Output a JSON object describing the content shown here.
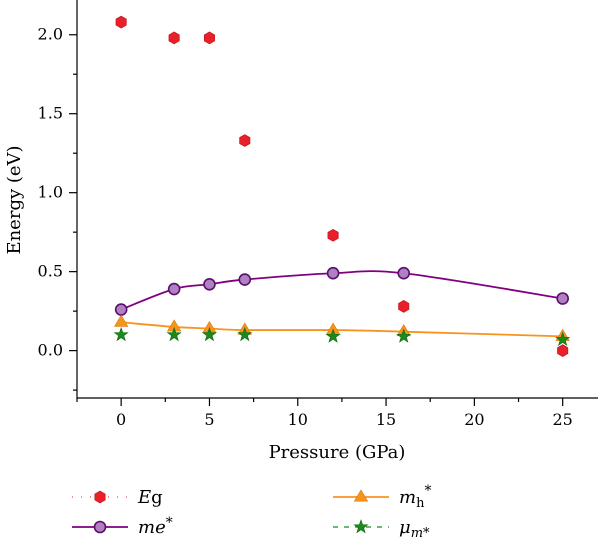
{
  "chart_data": {
    "type": "scatter",
    "xlabel": "Pressure (GPa)",
    "ylabel": "Energy (eV)",
    "xlim": [
      -2.5,
      27
    ],
    "ylim": [
      -0.3,
      2.22
    ],
    "xticks": [
      0,
      5,
      10,
      15,
      20,
      25
    ],
    "yticks": [
      0.0,
      0.5,
      1.0,
      1.5,
      2.0
    ],
    "xtick_labels": [
      "0",
      "5",
      "10",
      "15",
      "20",
      "25"
    ],
    "ytick_labels": [
      "0.0",
      "0.5",
      "1.0",
      "1.5",
      "2.0"
    ],
    "grid": false,
    "legend_position": "bottom",
    "series": [
      {
        "name": "Eg",
        "legend_label_main": "E",
        "legend_label_rest": "g",
        "marker": "hexagon",
        "color": "#e8202a",
        "line": false,
        "x": [
          0,
          3,
          5,
          7,
          12,
          16,
          25
        ],
        "y": [
          2.08,
          1.98,
          1.98,
          1.33,
          0.73,
          0.28,
          0.0
        ]
      },
      {
        "name": "me*",
        "legend_label_main": "me",
        "legend_label_rest": "*",
        "marker": "circle",
        "color": "#8a1f8f",
        "line_color": "#800080",
        "line": true,
        "x": [
          0,
          3,
          5,
          7,
          12,
          16,
          25
        ],
        "y": [
          0.26,
          0.39,
          0.42,
          0.45,
          0.49,
          0.49,
          0.33
        ]
      },
      {
        "name": "mh*",
        "legend_label_main": "m",
        "legend_label_sub": "h",
        "legend_label_rest": "*",
        "marker": "triangle",
        "color": "#f7941d",
        "line_color": "#f7941d",
        "line": true,
        "x": [
          0,
          3,
          5,
          7,
          12,
          16,
          25
        ],
        "y": [
          0.18,
          0.15,
          0.14,
          0.13,
          0.13,
          0.12,
          0.09
        ]
      },
      {
        "name": "μm*",
        "legend_label_main": "μ",
        "legend_label_sub": "m*",
        "marker": "star",
        "color": "#1a8a1a",
        "line": false,
        "x": [
          0,
          3,
          5,
          7,
          12,
          16,
          25
        ],
        "y": [
          0.1,
          0.1,
          0.1,
          0.1,
          0.09,
          0.09,
          0.07
        ]
      }
    ]
  }
}
